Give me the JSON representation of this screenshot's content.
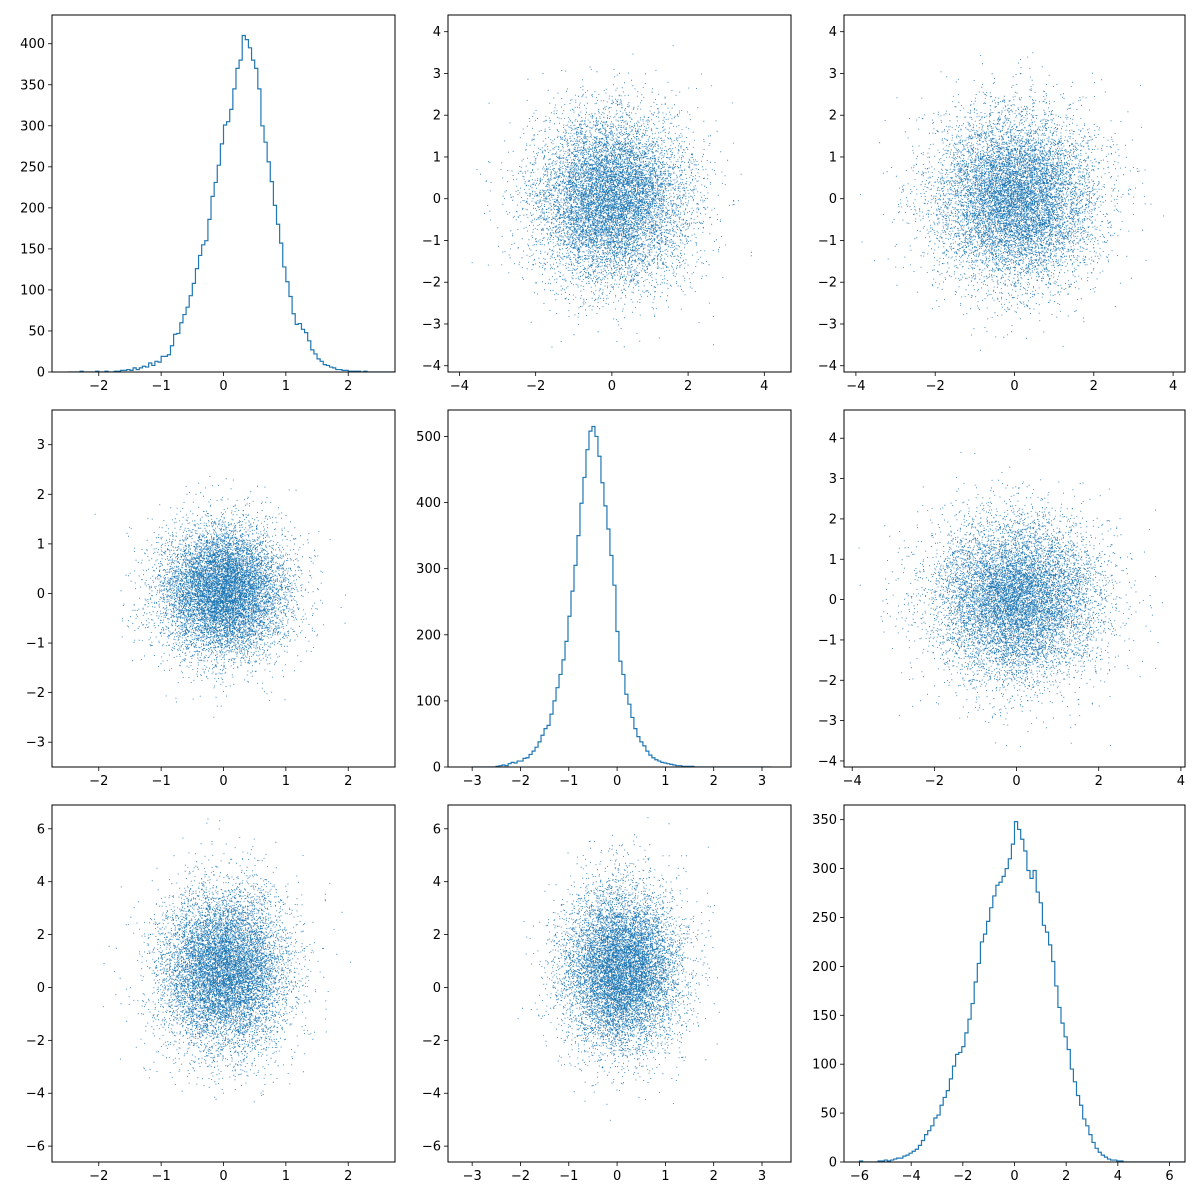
{
  "figure": {
    "layout": "3x3 scatter-matrix (histograms on diagonal, scatter off-diagonal)",
    "series_color": "#1f77b4"
  },
  "chart_data": [
    {
      "type": "histogram",
      "row": 0,
      "col": 0,
      "xlim": [
        -2.75,
        2.75
      ],
      "ylim": [
        0,
        435
      ],
      "xticks": [
        -2,
        -1,
        0,
        1,
        2
      ],
      "yticks": [
        0,
        50,
        100,
        150,
        200,
        250,
        300,
        350,
        400
      ],
      "bins": {
        "start": -2.5,
        "width": 0.05,
        "counts": [
          0,
          0,
          0,
          0,
          1,
          0,
          0,
          0,
          0,
          1,
          0,
          0,
          1,
          0,
          0,
          1,
          1,
          2,
          2,
          3,
          2,
          5,
          3,
          5,
          7,
          6,
          11,
          8,
          13,
          12,
          19,
          19,
          21,
          32,
          46,
          47,
          60,
          70,
          79,
          93,
          108,
          126,
          142,
          155,
          160,
          186,
          214,
          231,
          252,
          278,
          301,
          305,
          320,
          345,
          370,
          380,
          410,
          405,
          395,
          380,
          370,
          345,
          300,
          280,
          256,
          232,
          203,
          180,
          157,
          128,
          110,
          92,
          71,
          58,
          59,
          52,
          48,
          38,
          27,
          22,
          16,
          13,
          9,
          8,
          6,
          5,
          3,
          3,
          2,
          2,
          1,
          1,
          1,
          1,
          0,
          1,
          0,
          0,
          0,
          0,
          0,
          0,
          0,
          0,
          0,
          0
        ]
      }
    },
    {
      "type": "scatter",
      "row": 0,
      "col": 1,
      "xlim": [
        -4.3,
        4.7
      ],
      "ylim": [
        -4.15,
        4.4
      ],
      "xticks": [
        -4,
        -2,
        0,
        2,
        4
      ],
      "yticks": [
        -4,
        -3,
        -2,
        -1,
        0,
        1,
        2,
        3,
        4
      ],
      "points_approx": 10000,
      "x_stats": {
        "mean": 0.0,
        "sd": 1.0
      },
      "y_stats": {
        "mean": 0.0,
        "sd": 1.0
      }
    },
    {
      "type": "scatter",
      "row": 0,
      "col": 2,
      "xlim": [
        -4.3,
        4.3
      ],
      "ylim": [
        -4.15,
        4.4
      ],
      "xticks": [
        -4,
        -2,
        0,
        2,
        4
      ],
      "yticks": [
        -4,
        -3,
        -2,
        -1,
        0,
        1,
        2,
        3,
        4
      ],
      "points_approx": 10000,
      "x_stats": {
        "mean": 0.0,
        "sd": 1.0
      },
      "y_stats": {
        "mean": 0.0,
        "sd": 1.0
      }
    },
    {
      "type": "scatter",
      "row": 1,
      "col": 0,
      "xlim": [
        -2.75,
        2.75
      ],
      "ylim": [
        -3.5,
        3.7
      ],
      "xticks": [
        -2,
        -1,
        0,
        1,
        2
      ],
      "yticks": [
        -3,
        -2,
        -1,
        0,
        1,
        2,
        3
      ],
      "points_approx": 10000,
      "x_stats": {
        "mean": 0.0,
        "sd": 0.5
      },
      "y_stats": {
        "mean": 0.05,
        "sd": 0.65
      }
    },
    {
      "type": "histogram",
      "row": 1,
      "col": 1,
      "xlim": [
        -3.5,
        3.6
      ],
      "ylim": [
        0,
        540
      ],
      "xticks": [
        -3,
        -2,
        -1,
        0,
        1,
        2,
        3
      ],
      "yticks": [
        0,
        100,
        200,
        300,
        400,
        500
      ],
      "bins": {
        "start": -3.0,
        "width": 0.062,
        "counts": [
          0,
          0,
          0,
          0,
          0,
          0,
          0,
          0,
          1,
          2,
          3,
          2,
          5,
          7,
          6,
          9,
          9,
          13,
          14,
          19,
          24,
          30,
          38,
          48,
          58,
          63,
          80,
          100,
          120,
          140,
          162,
          190,
          228,
          266,
          305,
          350,
          399,
          438,
          480,
          508,
          515,
          500,
          470,
          430,
          395,
          360,
          320,
          275,
          205,
          160,
          140,
          110,
          95,
          75,
          58,
          46,
          38,
          32,
          24,
          18,
          14,
          11,
          9,
          7,
          6,
          5,
          4,
          3,
          2,
          2,
          1,
          1,
          1,
          1,
          0,
          0,
          0,
          0,
          0,
          0,
          0,
          0,
          0,
          0,
          0,
          0,
          0,
          0,
          0,
          0,
          0,
          0,
          0,
          0,
          0,
          0,
          0,
          0,
          0,
          0
        ]
      }
    },
    {
      "type": "scatter",
      "row": 1,
      "col": 2,
      "xlim": [
        -4.2,
        4.1
      ],
      "ylim": [
        -4.15,
        4.7
      ],
      "xticks": [
        -4,
        -2,
        0,
        2,
        4
      ],
      "yticks": [
        -4,
        -3,
        -2,
        -1,
        0,
        1,
        2,
        3,
        4
      ],
      "points_approx": 10000,
      "x_stats": {
        "mean": 0.0,
        "sd": 1.0
      },
      "y_stats": {
        "mean": 0.0,
        "sd": 1.0
      }
    },
    {
      "type": "scatter",
      "row": 2,
      "col": 0,
      "xlim": [
        -2.75,
        2.75
      ],
      "ylim": [
        -6.6,
        6.9
      ],
      "xticks": [
        -2,
        -1,
        0,
        1,
        2
      ],
      "yticks": [
        -6,
        -4,
        -2,
        0,
        2,
        4,
        6
      ],
      "points_approx": 10000,
      "x_stats": {
        "mean": 0.0,
        "sd": 0.5
      },
      "y_stats": {
        "mean": 0.7,
        "sd": 1.5
      }
    },
    {
      "type": "scatter",
      "row": 2,
      "col": 1,
      "xlim": [
        -3.5,
        3.6
      ],
      "ylim": [
        -6.6,
        6.9
      ],
      "xticks": [
        -3,
        -2,
        -1,
        0,
        1,
        2,
        3
      ],
      "yticks": [
        -6,
        -4,
        -2,
        0,
        2,
        4,
        6
      ],
      "points_approx": 10000,
      "x_stats": {
        "mean": 0.1,
        "sd": 0.6
      },
      "y_stats": {
        "mean": 0.7,
        "sd": 1.5
      }
    },
    {
      "type": "histogram",
      "row": 2,
      "col": 2,
      "xlim": [
        -6.6,
        6.6
      ],
      "ylim": [
        0,
        365
      ],
      "xticks": [
        -6,
        -4,
        -2,
        0,
        2,
        4,
        6
      ],
      "yticks": [
        0,
        50,
        100,
        150,
        200,
        250,
        300,
        350
      ],
      "bins": {
        "start": -6.0,
        "width": 0.12,
        "counts": [
          1,
          0,
          0,
          0,
          0,
          0,
          1,
          1,
          2,
          1,
          2,
          3,
          4,
          4,
          6,
          7,
          9,
          11,
          13,
          17,
          22,
          28,
          32,
          37,
          45,
          48,
          58,
          66,
          73,
          85,
          98,
          110,
          112,
          118,
          132,
          146,
          162,
          184,
          203,
          225,
          233,
          246,
          260,
          272,
          283,
          286,
          292,
          300,
          310,
          325,
          348,
          340,
          330,
          318,
          298,
          290,
          298,
          276,
          265,
          242,
          235,
          222,
          205,
          180,
          158,
          142,
          128,
          115,
          95,
          82,
          68,
          58,
          44,
          37,
          28,
          20,
          14,
          10,
          7,
          5,
          3,
          2,
          2,
          1,
          1,
          0,
          0,
          0,
          0,
          0,
          0,
          0,
          0,
          0,
          0,
          0,
          0,
          0,
          0,
          0,
          0,
          0,
          0,
          0,
          0,
          0,
          0,
          0
        ]
      }
    }
  ]
}
